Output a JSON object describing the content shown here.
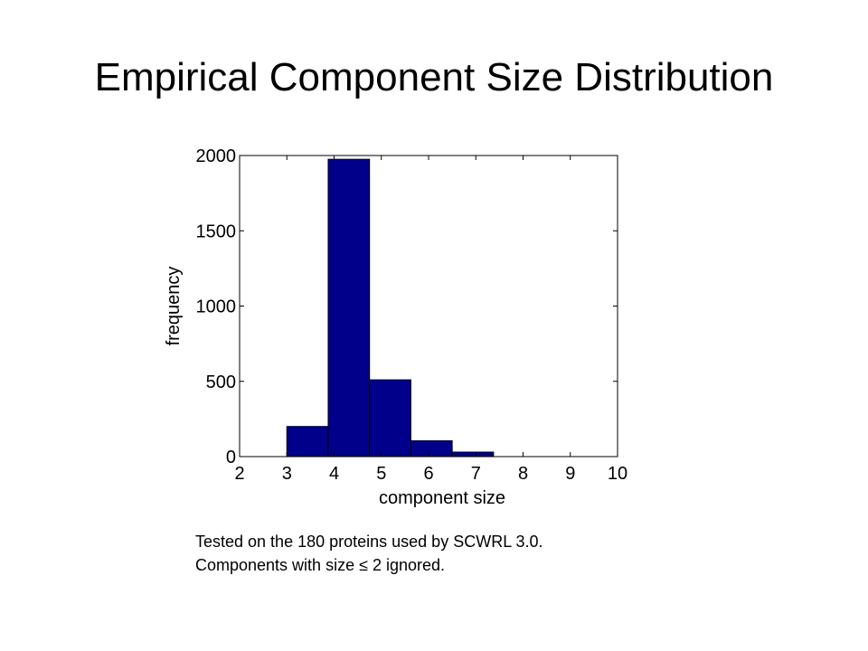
{
  "slide": {
    "title": "Empirical Component Size Distribution",
    "caption_line1": "Tested on the 180 proteins used by SCWRL 3.0.",
    "caption_line2": "Components with size ≤ 2 ignored."
  },
  "chart_data": {
    "type": "bar",
    "title": "",
    "xlabel": "component size",
    "ylabel": "frequency",
    "xlim": [
      2,
      10
    ],
    "ylim": [
      0,
      2000
    ],
    "xticks": [
      2,
      3,
      4,
      5,
      6,
      7,
      8,
      9,
      10
    ],
    "yticks": [
      0,
      500,
      1000,
      1500,
      2000
    ],
    "bins": [
      {
        "x0": 3.0,
        "x1": 3.875,
        "value": 200
      },
      {
        "x0": 3.875,
        "x1": 4.75,
        "value": 1975
      },
      {
        "x0": 4.75,
        "x1": 5.625,
        "value": 510
      },
      {
        "x0": 5.625,
        "x1": 6.5,
        "value": 105
      },
      {
        "x0": 6.5,
        "x1": 7.375,
        "value": 30
      }
    ],
    "bar_color": "#00008b",
    "grid": false,
    "legend": "none"
  }
}
